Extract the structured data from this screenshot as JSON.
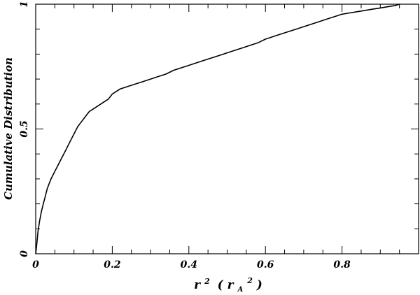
{
  "chart_data": {
    "type": "line",
    "title": "",
    "xlabel": {
      "base": "r",
      "sup": "2",
      "paren_open": "(",
      "paren_base": "r",
      "paren_sub": "A",
      "paren_sup": "2",
      "paren_close": ")"
    },
    "ylabel": "Cumulative Distribution",
    "xlim": [
      0,
      1
    ],
    "ylim": [
      0,
      1
    ],
    "x_ticks": [
      {
        "value": 0,
        "label": "0"
      },
      {
        "value": 0.2,
        "label": "0.2"
      },
      {
        "value": 0.4,
        "label": "0.4"
      },
      {
        "value": 0.6,
        "label": "0.6"
      },
      {
        "value": 0.8,
        "label": "0.8"
      }
    ],
    "y_ticks": [
      {
        "value": 0,
        "label": "0"
      },
      {
        "value": 0.5,
        "label": "0.5"
      },
      {
        "value": 1,
        "label": "1"
      }
    ],
    "x_minor_step": 0.05,
    "y_minor_step": 0.1,
    "grid": false,
    "line_color": "#000000",
    "series": [
      {
        "x": [
          0,
          0.003,
          0.006,
          0.01,
          0.015,
          0.02,
          0.025,
          0.03,
          0.035,
          0.04,
          0.05,
          0.06,
          0.07,
          0.08,
          0.09,
          0.1,
          0.11,
          0.12,
          0.13,
          0.14,
          0.15,
          0.16,
          0.17,
          0.18,
          0.19,
          0.2,
          0.21,
          0.22,
          0.24,
          0.26,
          0.28,
          0.3,
          0.32,
          0.34,
          0.36,
          0.38,
          0.4,
          0.42,
          0.44,
          0.46,
          0.48,
          0.5,
          0.52,
          0.54,
          0.56,
          0.58,
          0.6,
          0.62,
          0.64,
          0.66,
          0.68,
          0.7,
          0.72,
          0.74,
          0.76,
          0.78,
          0.8,
          0.82,
          0.84,
          0.86,
          0.88,
          0.9,
          0.92,
          0.94,
          0.95
        ],
        "y": [
          0,
          0.04,
          0.09,
          0.13,
          0.17,
          0.2,
          0.23,
          0.26,
          0.28,
          0.3,
          0.33,
          0.36,
          0.39,
          0.42,
          0.45,
          0.48,
          0.51,
          0.53,
          0.55,
          0.57,
          0.58,
          0.59,
          0.6,
          0.61,
          0.62,
          0.64,
          0.65,
          0.66,
          0.67,
          0.68,
          0.69,
          0.7,
          0.71,
          0.72,
          0.735,
          0.745,
          0.755,
          0.765,
          0.775,
          0.785,
          0.795,
          0.805,
          0.815,
          0.825,
          0.835,
          0.845,
          0.86,
          0.87,
          0.88,
          0.89,
          0.9,
          0.91,
          0.92,
          0.93,
          0.94,
          0.95,
          0.96,
          0.965,
          0.97,
          0.975,
          0.98,
          0.985,
          0.99,
          0.995,
          1.0
        ]
      }
    ]
  }
}
